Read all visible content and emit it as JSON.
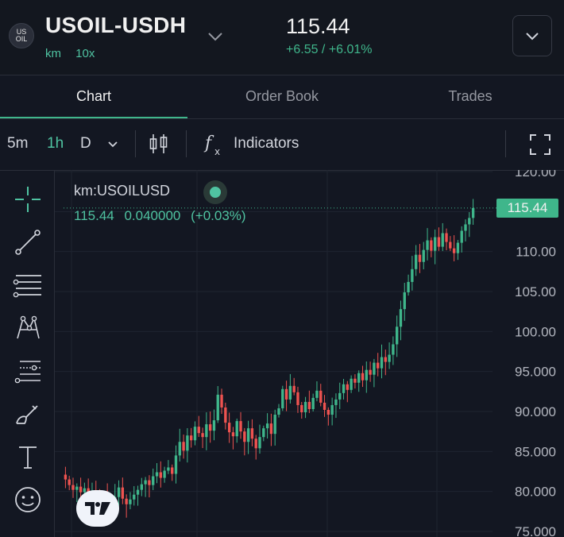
{
  "header": {
    "logo_text_top": "US",
    "logo_text_bottom": "OIL",
    "symbol": "USOIL-USDH",
    "exchange": "km",
    "leverage": "10x",
    "price": "115.44",
    "change": "+6.55 / +6.01%"
  },
  "tabs": [
    {
      "label": "Chart"
    },
    {
      "label": "Order Book"
    },
    {
      "label": "Trades"
    }
  ],
  "toolbar": {
    "interval_5m": "5m",
    "interval_1h": "1h",
    "interval_d": "D",
    "indicators_label": "Indicators"
  },
  "legend": {
    "symbol": "km:USOILUSD",
    "last": "115.44",
    "change_abs": "0.040000",
    "change_pct": "(+0.03%)"
  },
  "tv_logo": "TV",
  "colors": {
    "background": "#131722",
    "up": "#3fb68b",
    "down": "#ef5350",
    "accent": "#3fb68b"
  },
  "chart_data": {
    "type": "candlestick",
    "y_ticks": [
      "120.00",
      "115.00",
      "110.00",
      "105.00",
      "100.00",
      "95.000",
      "90.000",
      "85.000",
      "80.000",
      "75.000"
    ],
    "ylim": [
      75,
      120
    ],
    "current_price_label": "115.44",
    "grid": true,
    "closes": [
      81.5,
      80.8,
      80.2,
      80.6,
      79.9,
      80.4,
      79.6,
      80.1,
      79.2,
      78.9,
      79.4,
      78.6,
      78.2,
      79.3,
      80.5,
      79.1,
      78.4,
      79.0,
      79.6,
      80.2,
      80.9,
      81.4,
      80.8,
      81.9,
      82.4,
      81.7,
      82.6,
      83.0,
      82.2,
      84.5,
      86.2,
      85.1,
      87.0,
      86.4,
      88.1,
      87.3,
      86.8,
      88.4,
      87.6,
      88.9,
      92.1,
      90.5,
      88.6,
      87.4,
      86.9,
      88.8,
      87.5,
      86.2,
      87.9,
      86.6,
      85.4,
      86.8,
      87.9,
      88.5,
      87.2,
      89.6,
      90.4,
      92.8,
      91.5,
      93.2,
      92.4,
      90.8,
      89.9,
      91.2,
      90.3,
      91.7,
      92.6,
      91.1,
      90.2,
      89.6,
      90.8,
      91.5,
      92.3,
      93.4,
      92.7,
      94.1,
      93.6,
      94.8,
      93.9,
      95.2,
      94.6,
      96.1,
      95.4,
      96.8,
      96.2,
      97.1,
      98.4,
      100.6,
      102.8,
      104.9,
      106.2,
      107.8,
      109.6,
      108.7,
      110.2,
      111.4,
      110.1,
      111.8,
      110.6,
      112.3,
      111.2,
      110.4,
      109.8,
      111.1,
      112.6,
      113.4,
      114.2,
      115.44
    ]
  }
}
